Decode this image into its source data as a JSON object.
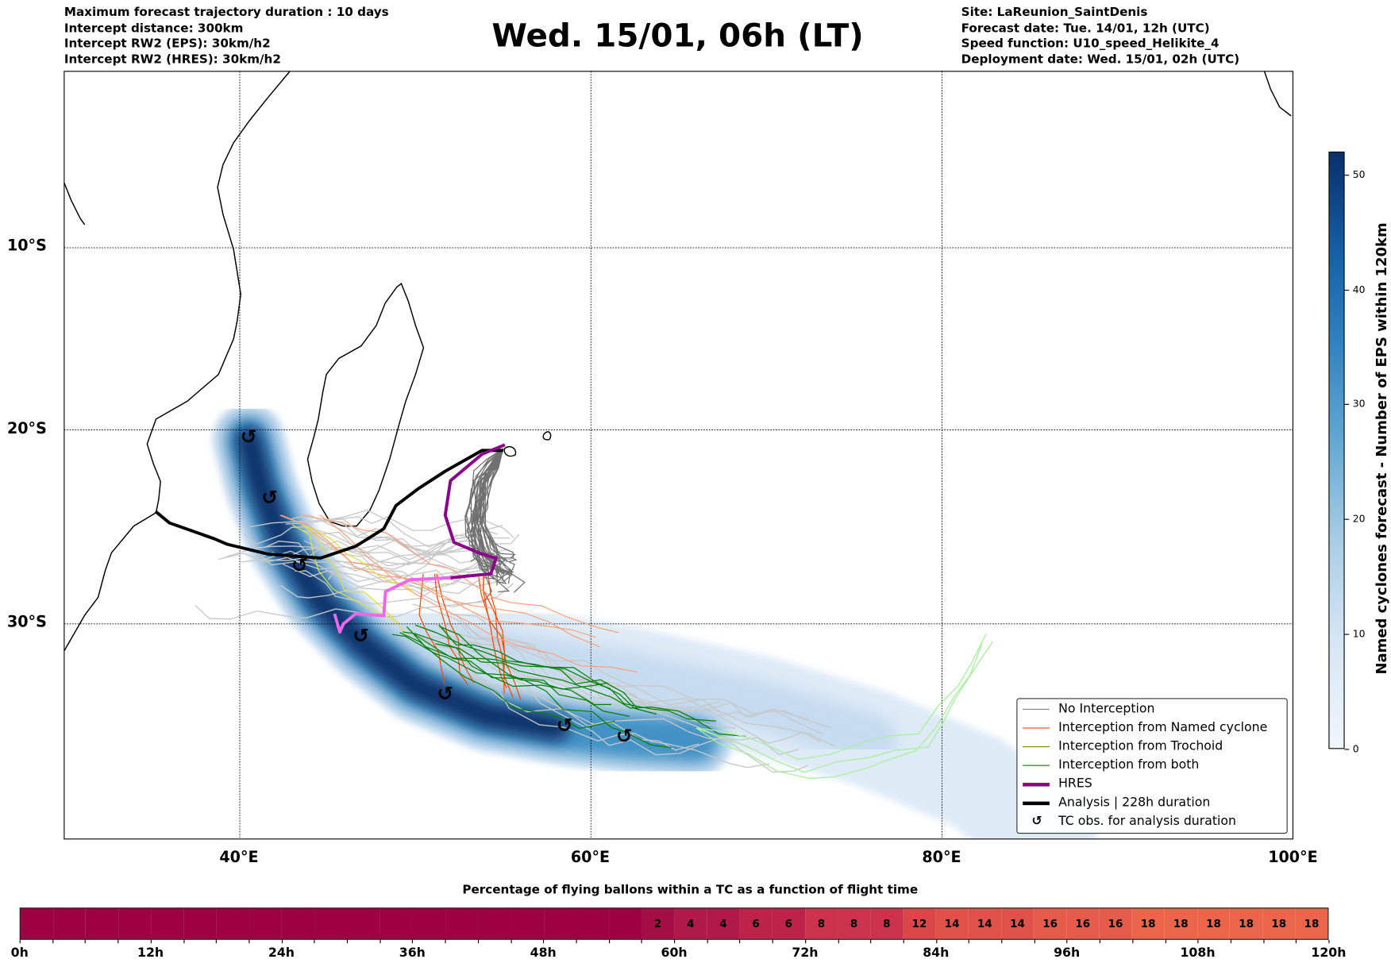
{
  "header": {
    "left": [
      "Maximum forecast trajectory duration : 10 days",
      "Intercept distance: 300km",
      "Intercept RW2 (EPS):  30km/h2",
      "Intercept RW2 (HRES): 30km/h2"
    ],
    "title": "Wed. 15/01, 06h (LT)",
    "right": [
      "Site: LaReunion_SaintDenis",
      "Forecast date: Tue. 14/01, 12h (UTC)",
      "Speed function: U10_speed_Helikite_4",
      "Deployment date: Wed. 15/01, 02h (UTC)"
    ]
  },
  "chart_data": [
    {
      "type": "map",
      "projection": "mercator",
      "lon_range": [
        30,
        100
      ],
      "lat_range": [
        0,
        -40.5
      ],
      "lon_ticks": [
        "40°E",
        "60°E",
        "80°E",
        "100°E"
      ],
      "lat_ticks": [
        "10°S",
        "20°S",
        "30°S"
      ],
      "legend_position": "bottom-right",
      "legend": [
        {
          "label": "No Interception",
          "color": "#808080"
        },
        {
          "label": "Interception from Named cyclone",
          "color": "#ff4500"
        },
        {
          "label": "Interception from Trochoid",
          "color": "#808000"
        },
        {
          "label": "Interception from both",
          "color": "#008000"
        },
        {
          "label": "HRES",
          "color": "#8b008b"
        },
        {
          "label": "Analysis | 228h duration",
          "color": "#000000"
        },
        {
          "label": "TC obs. for analysis duration",
          "color": "#000000",
          "symbol": "↺"
        }
      ],
      "analysis_track": [
        [
          35.2,
          -24.3
        ],
        [
          36.0,
          -24.9
        ],
        [
          38.5,
          -25.7
        ],
        [
          39.3,
          -26.0
        ],
        [
          41.6,
          -26.5
        ],
        [
          44.6,
          -26.7
        ],
        [
          46.6,
          -26.1
        ],
        [
          48.2,
          -25.2
        ],
        [
          48.9,
          -24.0
        ],
        [
          50.2,
          -23.1
        ],
        [
          51.7,
          -22.2
        ],
        [
          53.8,
          -21.1
        ],
        [
          55.0,
          -21.1
        ]
      ],
      "hres_track": [
        [
          55.1,
          -20.8
        ],
        [
          53.8,
          -21.3
        ],
        [
          52.0,
          -22.7
        ],
        [
          51.7,
          -24.5
        ],
        [
          52.2,
          -25.9
        ],
        [
          53.8,
          -26.5
        ],
        [
          54.6,
          -26.7
        ],
        [
          54.3,
          -27.5
        ],
        [
          52.0,
          -27.7
        ],
        [
          49.7,
          -27.8
        ],
        [
          48.3,
          -28.4
        ],
        [
          48.2,
          -29.6
        ],
        [
          46.6,
          -29.5
        ],
        [
          45.9,
          -30.0
        ],
        [
          45.7,
          -30.4
        ],
        [
          45.4,
          -29.5
        ]
      ],
      "tc_obs": [
        [
          40.5,
          -20.4
        ],
        [
          41.7,
          -23.6
        ],
        [
          43.4,
          -27.1
        ],
        [
          46.9,
          -30.6
        ],
        [
          51.7,
          -33.4
        ],
        [
          58.5,
          -34.9
        ],
        [
          61.9,
          -35.4
        ]
      ],
      "colorbar": {
        "label": "Named cyclones forecast - Number of EPS within 120km",
        "ticks": [
          0,
          10,
          20,
          30,
          40,
          50
        ],
        "range": [
          0,
          52
        ]
      }
    },
    {
      "type": "heatmap",
      "title": "Percentage of flying ballons within a TC as a function of flight time",
      "bin_hours": 3,
      "x_ticks": [
        "0h",
        "12h",
        "24h",
        "36h",
        "48h",
        "60h",
        "72h",
        "84h",
        "96h",
        "108h",
        "120h"
      ],
      "values": [
        0,
        0,
        0,
        0,
        0,
        0,
        0,
        0,
        0,
        0,
        0,
        0,
        0,
        0,
        0,
        0,
        0,
        0,
        0,
        2,
        4,
        4,
        6,
        6,
        8,
        8,
        8,
        12,
        14,
        14,
        14,
        16,
        16,
        16,
        18,
        18,
        18,
        18,
        18,
        18
      ],
      "colors": {
        "0": "#9e0142",
        "2": "#a30f44",
        "4": "#b01a49",
        "6": "#bd2349",
        "8": "#cb334c",
        "12": "#db4649",
        "14": "#e0514a",
        "16": "#e55c4b",
        "18": "#ea6549"
      }
    }
  ]
}
